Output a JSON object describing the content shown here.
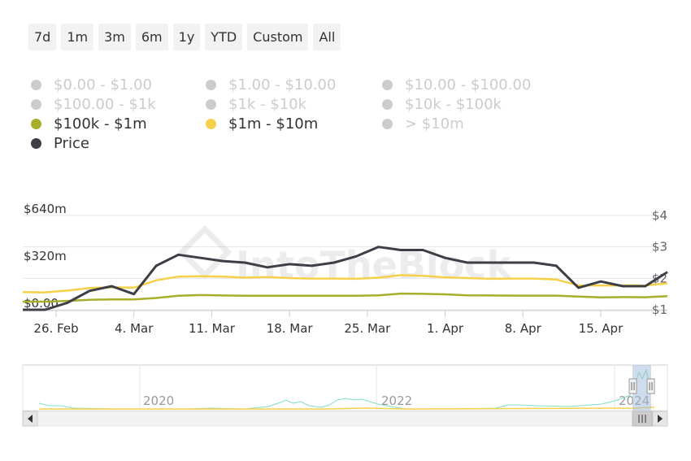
{
  "range_buttons": [
    "7d",
    "1m",
    "3m",
    "6m",
    "1y",
    "YTD",
    "Custom",
    "All"
  ],
  "legend": [
    {
      "label": "$0.00 - $1.00",
      "color": "#cccccc",
      "active": false
    },
    {
      "label": "$1.00 - $10.00",
      "color": "#cccccc",
      "active": false
    },
    {
      "label": "$10.00 - $100.00",
      "color": "#cccccc",
      "active": false
    },
    {
      "label": "$100.00 - $1k",
      "color": "#cccccc",
      "active": false
    },
    {
      "label": "$1k - $10k",
      "color": "#cccccc",
      "active": false
    },
    {
      "label": "$10k - $100k",
      "color": "#cccccc",
      "active": false
    },
    {
      "label": "$100k - $1m",
      "color": "#a8ae2a",
      "active": true
    },
    {
      "label": "$1m - $10m",
      "color": "#f7d04a",
      "active": true
    },
    {
      "label": "> $10m",
      "color": "#cccccc",
      "active": false
    },
    {
      "label": "Price",
      "color": "#3c3f46",
      "active": true
    }
  ],
  "watermark": "IntoTheBlock",
  "navigator_years": [
    "2020",
    "2022",
    "2024"
  ],
  "chart_data": {
    "type": "line",
    "y_left_ticks": [
      "$640m",
      "$320m",
      "$0.00"
    ],
    "y_left_range": [
      0,
      640
    ],
    "y_right_ticks": [
      "$4",
      "$3",
      "$2",
      "$1"
    ],
    "y_right_range": [
      1,
      4
    ],
    "x_tick_labels": [
      "26. Feb",
      "4. Mar",
      "11. Mar",
      "18. Mar",
      "25. Mar",
      "1. Apr",
      "8. Apr",
      "15. Apr"
    ],
    "x_tick_dates": [
      "2024-02-26",
      "2024-03-04",
      "2024-03-11",
      "2024-03-18",
      "2024-03-25",
      "2024-04-01",
      "2024-04-08",
      "2024-04-15"
    ],
    "x_dates": [
      "2024-02-23",
      "2024-02-25",
      "2024-02-27",
      "2024-02-29",
      "2024-03-02",
      "2024-03-04",
      "2024-03-06",
      "2024-03-08",
      "2024-03-10",
      "2024-03-12",
      "2024-03-14",
      "2024-03-16",
      "2024-03-18",
      "2024-03-20",
      "2024-03-22",
      "2024-03-24",
      "2024-03-26",
      "2024-03-28",
      "2024-03-30",
      "2024-04-01",
      "2024-04-03",
      "2024-04-05",
      "2024-04-07",
      "2024-04-09",
      "2024-04-11",
      "2024-04-13",
      "2024-04-15",
      "2024-04-17",
      "2024-04-19",
      "2024-04-21"
    ],
    "series": [
      {
        "name": "$100k - $1m",
        "axis": "left",
        "color": "#a8ae2a",
        "values": [
          55,
          55,
          60,
          68,
          70,
          70,
          80,
          95,
          100,
          97,
          95,
          95,
          95,
          95,
          95,
          95,
          98,
          110,
          108,
          105,
          98,
          97,
          96,
          96,
          96,
          90,
          84,
          86,
          85,
          92
        ]
      },
      {
        "name": "$1m - $10m",
        "axis": "left",
        "color": "#f7d04a",
        "values": [
          120,
          118,
          130,
          148,
          152,
          150,
          200,
          225,
          228,
          225,
          218,
          222,
          215,
          212,
          212,
          210,
          218,
          235,
          230,
          220,
          215,
          210,
          212,
          212,
          205,
          165,
          165,
          165,
          165,
          180
        ]
      },
      {
        "name": "Price",
        "axis": "right",
        "color": "#3c3f46",
        "values": [
          1.0,
          1.0,
          1.22,
          1.6,
          1.75,
          1.5,
          2.4,
          2.75,
          2.65,
          2.55,
          2.5,
          2.35,
          2.45,
          2.4,
          2.5,
          2.7,
          3.0,
          2.9,
          2.9,
          2.65,
          2.5,
          2.5,
          2.5,
          2.5,
          2.4,
          1.7,
          1.9,
          1.75,
          1.75,
          2.2
        ]
      }
    ],
    "grid": true,
    "legend_position": "top"
  }
}
